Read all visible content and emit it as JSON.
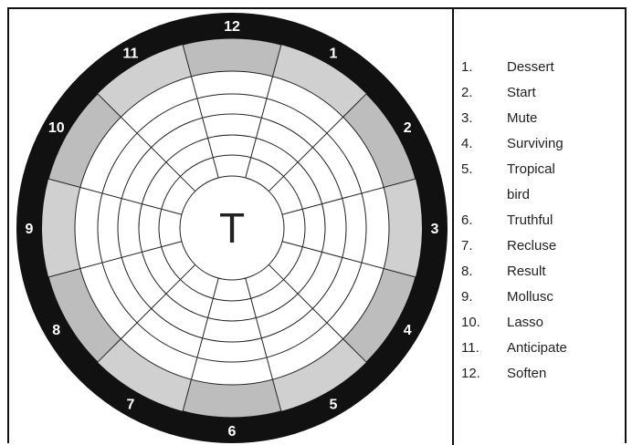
{
  "center_letter": "T",
  "wheel_numbers": [
    1,
    2,
    3,
    4,
    5,
    6,
    7,
    8,
    9,
    10,
    11,
    12
  ],
  "clues": [
    {
      "number": "1.",
      "text": "Dessert"
    },
    {
      "number": "2.",
      "text": "Start"
    },
    {
      "number": "3.",
      "text": "Mute"
    },
    {
      "number": "4.",
      "text": "Surviving"
    },
    {
      "number": "5.",
      "text": "Tropical bird"
    },
    {
      "number": "6.",
      "text": "Truthful"
    },
    {
      "number": "7.",
      "text": "Recluse"
    },
    {
      "number": "8.",
      "text": "Result"
    },
    {
      "number": "9.",
      "text": "Mollusc"
    },
    {
      "number": "10.",
      "text": "Lasso"
    },
    {
      "number": "11.",
      "text": "Anticipate"
    },
    {
      "number": "12.",
      "text": "Soften"
    }
  ]
}
